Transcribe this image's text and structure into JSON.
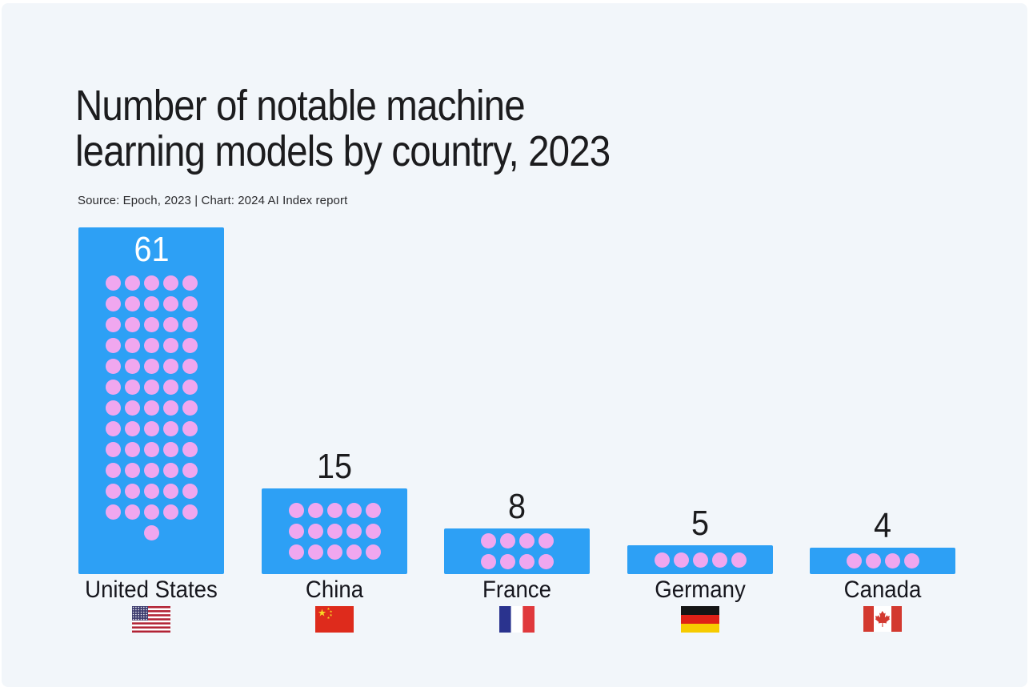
{
  "header": {
    "title_line1": "Number of notable machine",
    "title_line2": "learning models by country, 2023",
    "source": "Source: Epoch, 2023 | Chart: 2024 AI Index report"
  },
  "chart_data": {
    "type": "bar",
    "subtype": "pictogram-dot-bar",
    "title": "Number of notable machine learning models by country, 2023",
    "source": "Source: Epoch, 2023 | Chart: 2024 AI Index report",
    "categories": [
      "United States",
      "China",
      "France",
      "Germany",
      "Canada"
    ],
    "values": [
      61,
      15,
      8,
      5,
      4
    ],
    "value_labels": [
      "61",
      "15",
      "8",
      "5",
      "4"
    ],
    "flags": [
      "us",
      "cn",
      "fr",
      "de",
      "ca"
    ],
    "dot_columns": [
      5,
      5,
      4,
      5,
      4
    ],
    "value_label_position": [
      "inside",
      "above",
      "above",
      "above",
      "above"
    ],
    "xlabel": "",
    "ylabel": "",
    "ylim": [
      0,
      61
    ],
    "grid": false,
    "legend": "none",
    "colors": {
      "bar": "#2da0f5",
      "dot": "#f0a7ef",
      "value_inside": "#ffffff",
      "value_outside": "#1c1c1e",
      "text": "#1c1c1e",
      "background": "#f2f6fa"
    }
  }
}
